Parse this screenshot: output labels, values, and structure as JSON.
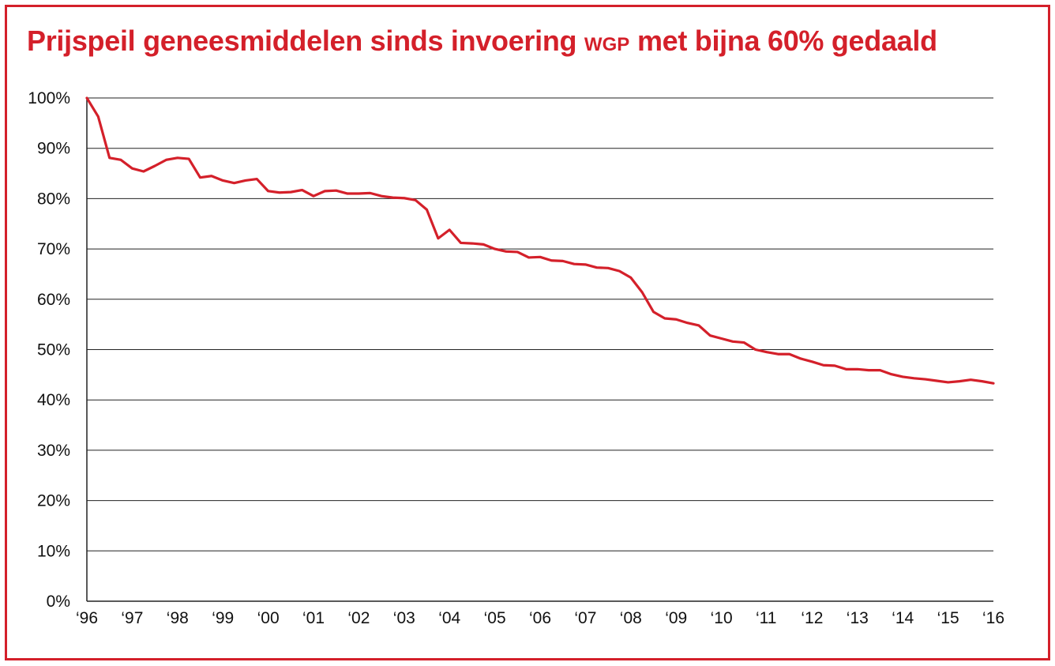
{
  "title": {
    "part1": "Prijspeil geneesmiddelen sinds invoering",
    "abbr": "WGP",
    "part2": "met bijna 60% gedaald"
  },
  "colors": {
    "accent": "#d4202a",
    "grid": "#222222",
    "text": "#111111"
  },
  "chart_data": {
    "type": "line",
    "title": "Prijspeil geneesmiddelen sinds invoering WGP met bijna 60% gedaald",
    "xlabel": "",
    "ylabel": "",
    "xlim": [
      1996,
      2016
    ],
    "ylim": [
      0,
      100
    ],
    "grid": true,
    "legend": "none",
    "x_tick_labels": [
      "‘96",
      "‘97",
      "‘98",
      "‘99",
      "‘00",
      "‘01",
      "‘02",
      "‘03",
      "‘04",
      "‘05",
      "‘06",
      "‘07",
      "‘08",
      "‘09",
      "‘10",
      "‘11",
      "‘12",
      "‘13",
      "‘14",
      "‘15",
      "‘16"
    ],
    "y_tick_labels": [
      "0%",
      "10%",
      "20%",
      "30%",
      "40%",
      "50%",
      "60%",
      "70%",
      "80%",
      "90%",
      "100%"
    ],
    "series": [
      {
        "x": [
          1996.0,
          1996.25,
          1996.5,
          1996.75,
          1997.0,
          1997.25,
          1997.5,
          1997.75,
          1998.0,
          1998.25,
          1998.5,
          1998.75,
          1999.0,
          1999.25,
          1999.5,
          1999.75,
          2000.0,
          2000.25,
          2000.5,
          2000.75,
          2001.0,
          2001.25,
          2001.5,
          2001.75,
          2002.0,
          2002.25,
          2002.5,
          2002.75,
          2003.0,
          2003.25,
          2003.5,
          2003.75,
          2004.0,
          2004.25,
          2004.5,
          2004.75,
          2005.0,
          2005.25,
          2005.5,
          2005.75,
          2006.0,
          2006.25,
          2006.5,
          2006.75,
          2007.0,
          2007.25,
          2007.5,
          2007.75,
          2008.0,
          2008.25,
          2008.5,
          2008.75,
          2009.0,
          2009.25,
          2009.5,
          2009.75,
          2010.0,
          2010.25,
          2010.5,
          2010.75,
          2011.0,
          2011.25,
          2011.5,
          2011.75,
          2012.0,
          2012.25,
          2012.5,
          2012.75,
          2013.0,
          2013.25,
          2013.5,
          2013.75,
          2014.0,
          2014.25,
          2014.5,
          2014.75,
          2015.0,
          2015.25,
          2015.5,
          2015.75,
          2016.0
        ],
        "values": [
          100.0,
          96.3,
          88.1,
          87.7,
          86.0,
          85.4,
          86.5,
          87.7,
          88.1,
          87.9,
          84.2,
          84.5,
          83.6,
          83.1,
          83.6,
          83.9,
          81.5,
          81.2,
          81.3,
          81.7,
          80.5,
          81.5,
          81.6,
          81.0,
          81.0,
          81.1,
          80.5,
          80.2,
          80.1,
          79.7,
          77.8,
          72.1,
          73.8,
          71.2,
          71.1,
          70.9,
          70.0,
          69.5,
          69.4,
          68.3,
          68.4,
          67.7,
          67.6,
          67.0,
          66.9,
          66.3,
          66.2,
          65.6,
          64.3,
          61.4,
          57.5,
          56.2,
          56.0,
          55.3,
          54.8,
          52.8,
          52.2,
          51.6,
          51.4,
          50.0,
          49.5,
          49.1,
          49.1,
          48.2,
          47.6,
          46.9,
          46.8,
          46.1,
          46.1,
          45.9,
          45.9,
          45.1,
          44.6,
          44.3,
          44.1,
          43.8,
          43.5,
          43.7,
          44.0,
          43.7,
          43.3
        ]
      }
    ]
  }
}
